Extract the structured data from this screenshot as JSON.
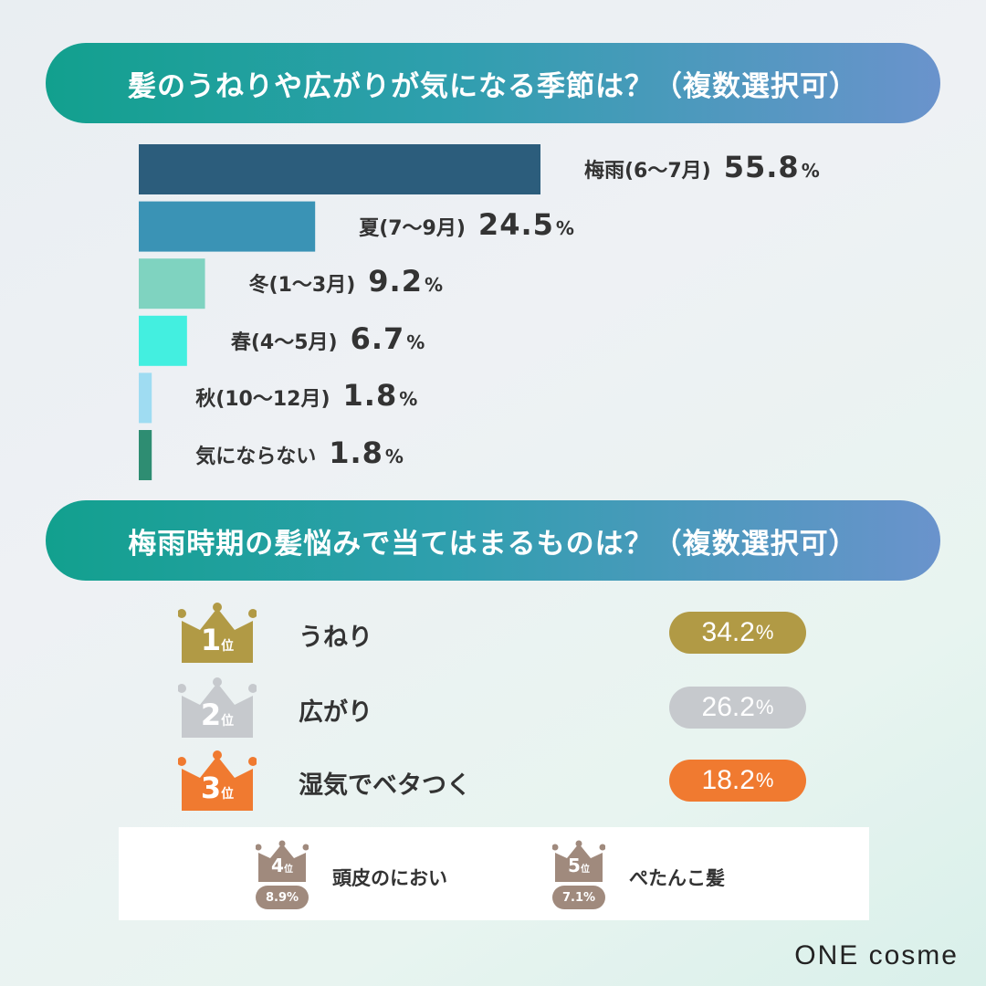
{
  "section1": {
    "title": "髪のうねりや広がりが気になる季節は？（複数選択可）"
  },
  "chart_data": {
    "type": "bar",
    "orientation": "horizontal",
    "categories": [
      "梅雨(6〜7月)",
      "夏(7〜9月)",
      "冬(1〜3月)",
      "春(4〜5月)",
      "秋(10〜12月)",
      "気にならない"
    ],
    "values": [
      55.8,
      24.5,
      9.2,
      6.7,
      1.8,
      1.8
    ],
    "value_labels": [
      "55.8",
      "24.5",
      "9.2",
      "6.7",
      "1.8",
      "1.8"
    ],
    "unit": "%",
    "colors": [
      "#2c5d7c",
      "#3a93b5",
      "#7fd3c0",
      "#43efe0",
      "#9fdcf2",
      "#2e8d72"
    ],
    "title": "髪のうねりや広がりが気になる季節は？（複数選択可）",
    "xlim": [
      0,
      55.8
    ],
    "grid": false
  },
  "section2": {
    "title": "梅雨時期の髪悩みで当てはまるものは？（複数選択可）",
    "pos_suffix": "位",
    "top_ranks": [
      {
        "rank": "1",
        "label": "うねり",
        "value": "34.2",
        "unit": "%",
        "color": "#b19a45"
      },
      {
        "rank": "2",
        "label": "広がり",
        "value": "26.2",
        "unit": "%",
        "color": "#c6c9cd"
      },
      {
        "rank": "3",
        "label": "湿気でベタつく",
        "value": "18.2",
        "unit": "%",
        "color": "#f07a30"
      }
    ],
    "minor_ranks": [
      {
        "rank": "4",
        "label": "頭皮のにおい",
        "value": "8.9%",
        "color": "#a08a7d"
      },
      {
        "rank": "5",
        "label": "ぺたんこ髪",
        "value": "7.1%",
        "color": "#a08a7d"
      }
    ]
  },
  "brand": {
    "logo": "ONE cosme"
  }
}
